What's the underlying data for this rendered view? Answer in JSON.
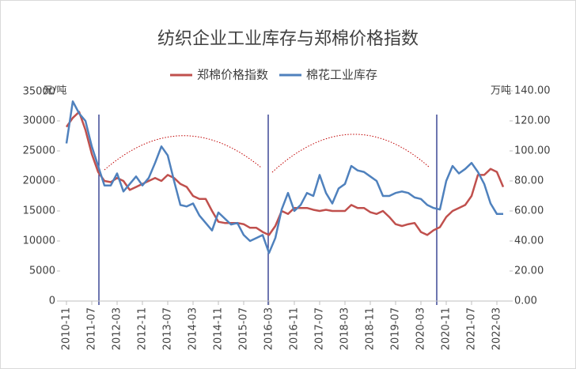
{
  "chart_data": {
    "type": "line",
    "title": "纺织企业工业库存与郑棉价格指数",
    "y_label": "元/吨",
    "y2_label": "万吨",
    "categories": [
      "2010-11",
      null,
      null,
      null,
      "2011-07",
      null,
      null,
      null,
      "2012-03",
      null,
      null,
      null,
      "2012-11",
      null,
      null,
      null,
      "2013-07",
      null,
      null,
      null,
      "2014-03",
      null,
      null,
      null,
      "2014-11",
      null,
      null,
      null,
      "2015-07",
      null,
      null,
      null,
      "2016-03",
      null,
      null,
      null,
      "2016-11",
      null,
      null,
      null,
      "2017-07",
      null,
      null,
      null,
      "2018-03",
      null,
      null,
      null,
      "2018-11",
      null,
      null,
      null,
      "2019-07",
      null,
      null,
      null,
      "2020-03",
      null,
      null,
      null,
      "2020-11",
      null,
      null,
      null,
      "2021-07",
      null,
      null,
      null,
      "2022-03",
      null
    ],
    "series": [
      {
        "name": "郑棉价格指数",
        "color": "#c0504d",
        "axis": "y",
        "values": [
          29000,
          30500,
          31500,
          28500,
          24500,
          21500,
          20000,
          19800,
          20500,
          20000,
          18500,
          19000,
          19500,
          20000,
          20500,
          20000,
          21000,
          20500,
          19500,
          19000,
          17500,
          17000,
          17000,
          15000,
          13200,
          13000,
          13000,
          13000,
          12800,
          12200,
          12200,
          11500,
          11000,
          12500,
          15000,
          14500,
          15500,
          15500,
          15500,
          15200,
          15000,
          15200,
          15000,
          15000,
          15000,
          16000,
          15500,
          15500,
          14800,
          14500,
          15000,
          14000,
          12800,
          12500,
          12800,
          13000,
          11500,
          11000,
          11800,
          12300,
          14000,
          15000,
          15500,
          16000,
          17500,
          21000,
          21000,
          22000,
          21500,
          19000
        ]
      },
      {
        "name": "棉花工业库存",
        "color": "#4f81bd",
        "axis": "y2",
        "values": [
          105,
          133,
          125,
          120,
          103,
          90,
          77,
          77,
          85,
          73,
          78,
          83,
          77,
          82,
          92,
          103,
          97,
          80,
          64,
          63,
          65,
          57,
          52,
          47,
          59,
          55,
          51,
          52,
          44,
          40,
          42,
          44,
          32,
          42,
          61,
          72,
          60,
          64,
          72,
          70,
          84,
          72,
          65,
          75,
          78,
          90,
          87,
          86,
          83,
          80,
          70,
          70,
          72,
          73,
          72,
          69,
          68,
          64,
          62,
          61,
          80,
          90,
          85,
          88,
          92,
          86,
          78,
          65,
          58,
          58
        ]
      }
    ],
    "ylim": [
      0,
      35000
    ],
    "yticks": [
      0,
      5000,
      10000,
      15000,
      20000,
      25000,
      30000,
      35000
    ],
    "y2lim": [
      0,
      140
    ],
    "y2ticks": [
      {
        "value": 0,
        "label": "0.00"
      },
      {
        "value": 20,
        "label": "20.00"
      },
      {
        "value": 40,
        "label": "40.00"
      },
      {
        "value": 60,
        "label": "60.00"
      },
      {
        "value": 80,
        "label": "80.00"
      },
      {
        "value": 100,
        "label": "100.00"
      },
      {
        "value": 120,
        "label": "120.00"
      },
      {
        "value": 140,
        "label": "140.00"
      }
    ],
    "legend": "top"
  }
}
